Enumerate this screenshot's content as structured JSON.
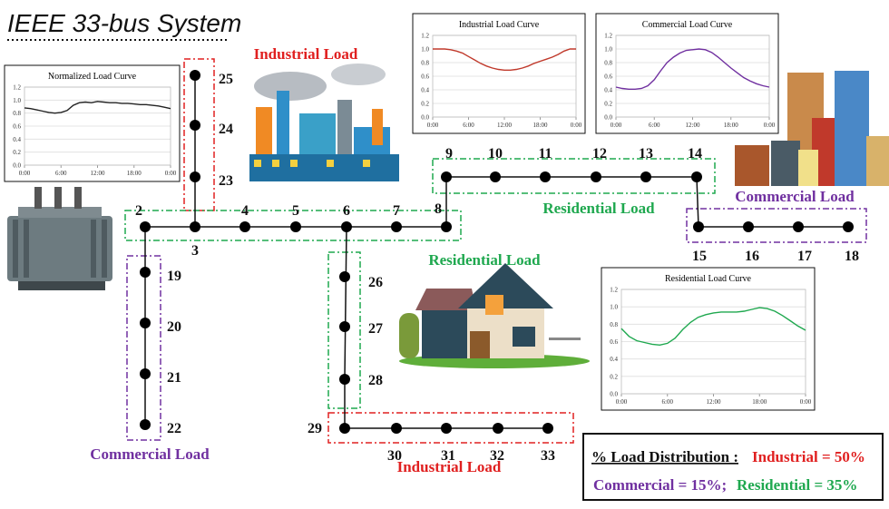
{
  "title": "IEEE 33-bus System",
  "buses": [
    "2",
    "3",
    "4",
    "5",
    "6",
    "7",
    "8",
    "9",
    "10",
    "11",
    "12",
    "13",
    "14",
    "15",
    "16",
    "17",
    "18",
    "19",
    "20",
    "21",
    "22",
    "23",
    "24",
    "25",
    "26",
    "27",
    "28",
    "29",
    "30",
    "31",
    "32",
    "33"
  ],
  "zones": [
    {
      "label": "Industrial Load",
      "color": "#e02020"
    },
    {
      "label": "Commercial Load",
      "color": "#7030a0"
    },
    {
      "label": "Residential Load",
      "color": "#1fa84f"
    },
    {
      "label": "Residential Load",
      "color": "#1fa84f"
    },
    {
      "label": "Commercial Load",
      "color": "#7030a0"
    },
    {
      "label": "Industrial Load",
      "color": "#e02020"
    }
  ],
  "curves": [
    {
      "type": "line",
      "title": "Normalized Load Curve",
      "color": "#222222",
      "x": [
        0,
        1,
        2,
        3,
        4,
        5,
        6,
        7,
        8,
        9,
        10,
        11,
        12,
        13,
        14,
        15,
        16,
        17,
        18,
        19,
        20,
        21,
        22,
        23,
        24
      ],
      "values": [
        0.88,
        0.87,
        0.85,
        0.83,
        0.81,
        0.8,
        0.81,
        0.84,
        0.92,
        0.96,
        0.97,
        0.96,
        0.98,
        0.97,
        0.96,
        0.96,
        0.95,
        0.95,
        0.94,
        0.93,
        0.93,
        0.92,
        0.91,
        0.89,
        0.87
      ],
      "xlim": [
        0,
        24
      ],
      "ylim": [
        0,
        1.2
      ],
      "xticks": [
        {
          "value": 0,
          "label": "0:00"
        },
        {
          "value": 6,
          "label": "6:00"
        },
        {
          "value": 12,
          "label": "12:00"
        },
        {
          "value": 18,
          "label": "18:00"
        },
        {
          "value": 24,
          "label": "0:00"
        }
      ],
      "yticks": [
        {
          "value": 0,
          "label": "0.0"
        },
        {
          "value": 0.2,
          "label": "0.2"
        },
        {
          "value": 0.4,
          "label": "0.4"
        },
        {
          "value": 0.6,
          "label": "0.6"
        },
        {
          "value": 0.8,
          "label": "0.8"
        },
        {
          "value": 1,
          "label": "1.0"
        },
        {
          "value": 1.2,
          "label": "1.2"
        }
      ]
    },
    {
      "type": "line",
      "title": "Industrial Load Curve",
      "color": "#c0392b",
      "x": [
        0,
        1,
        2,
        3,
        4,
        5,
        6,
        7,
        8,
        9,
        10,
        11,
        12,
        13,
        14,
        15,
        16,
        17,
        18,
        19,
        20,
        21,
        22,
        23,
        24
      ],
      "values": [
        1.0,
        1.0,
        1.0,
        0.99,
        0.97,
        0.94,
        0.89,
        0.84,
        0.79,
        0.75,
        0.72,
        0.7,
        0.69,
        0.69,
        0.7,
        0.72,
        0.75,
        0.79,
        0.82,
        0.85,
        0.88,
        0.92,
        0.97,
        1.0,
        1.0
      ],
      "xlim": [
        0,
        24
      ],
      "ylim": [
        0,
        1.2
      ],
      "xticks": [
        {
          "value": 0,
          "label": "0:00"
        },
        {
          "value": 6,
          "label": "6:00"
        },
        {
          "value": 12,
          "label": "12:00"
        },
        {
          "value": 18,
          "label": "18:00"
        },
        {
          "value": 24,
          "label": "0:00"
        }
      ],
      "yticks": [
        {
          "value": 0,
          "label": "0.0"
        },
        {
          "value": 0.2,
          "label": "0.2"
        },
        {
          "value": 0.4,
          "label": "0.4"
        },
        {
          "value": 0.6,
          "label": "0.6"
        },
        {
          "value": 0.8,
          "label": "0.8"
        },
        {
          "value": 1,
          "label": "1.0"
        },
        {
          "value": 1.2,
          "label": "1.2"
        }
      ]
    },
    {
      "type": "line",
      "title": "Commercial Load Curve",
      "color": "#7030a0",
      "x": [
        0,
        1,
        2,
        3,
        4,
        5,
        6,
        7,
        8,
        9,
        10,
        11,
        12,
        13,
        14,
        15,
        16,
        17,
        18,
        19,
        20,
        21,
        22,
        23,
        24
      ],
      "values": [
        0.44,
        0.42,
        0.41,
        0.41,
        0.42,
        0.46,
        0.55,
        0.68,
        0.8,
        0.88,
        0.94,
        0.98,
        0.99,
        1.0,
        0.99,
        0.95,
        0.88,
        0.8,
        0.72,
        0.65,
        0.58,
        0.53,
        0.49,
        0.46,
        0.44
      ],
      "xlim": [
        0,
        24
      ],
      "ylim": [
        0,
        1.2
      ],
      "xticks": [
        {
          "value": 0,
          "label": "0:00"
        },
        {
          "value": 6,
          "label": "6:00"
        },
        {
          "value": 12,
          "label": "12:00"
        },
        {
          "value": 18,
          "label": "18:00"
        },
        {
          "value": 24,
          "label": "0:00"
        }
      ],
      "yticks": [
        {
          "value": 0,
          "label": "0.0"
        },
        {
          "value": 0.2,
          "label": "0.2"
        },
        {
          "value": 0.4,
          "label": "0.4"
        },
        {
          "value": 0.6,
          "label": "0.6"
        },
        {
          "value": 0.8,
          "label": "0.8"
        },
        {
          "value": 1,
          "label": "1.0"
        },
        {
          "value": 1.2,
          "label": "1.2"
        }
      ]
    },
    {
      "type": "line",
      "title": "Residential Load Curve",
      "color": "#1fa84f",
      "x": [
        0,
        1,
        2,
        3,
        4,
        5,
        6,
        7,
        8,
        9,
        10,
        11,
        12,
        13,
        14,
        15,
        16,
        17,
        18,
        19,
        20,
        21,
        22,
        23,
        24
      ],
      "values": [
        0.75,
        0.66,
        0.61,
        0.59,
        0.57,
        0.56,
        0.58,
        0.64,
        0.74,
        0.82,
        0.88,
        0.91,
        0.93,
        0.94,
        0.94,
        0.94,
        0.95,
        0.97,
        0.99,
        0.98,
        0.95,
        0.9,
        0.84,
        0.78,
        0.73
      ],
      "xlim": [
        0,
        24
      ],
      "ylim": [
        0,
        1.2
      ],
      "xticks": [
        {
          "value": 0,
          "label": "0:00"
        },
        {
          "value": 6,
          "label": "6:00"
        },
        {
          "value": 12,
          "label": "12:00"
        },
        {
          "value": 18,
          "label": "18:00"
        },
        {
          "value": 24,
          "label": "0:00"
        }
      ],
      "yticks": [
        {
          "value": 0,
          "label": "0.0"
        },
        {
          "value": 0.2,
          "label": "0.2"
        },
        {
          "value": 0.4,
          "label": "0.4"
        },
        {
          "value": 0.6,
          "label": "0.6"
        },
        {
          "value": 0.8,
          "label": "0.8"
        },
        {
          "value": 1,
          "label": "1.0"
        },
        {
          "value": 1.2,
          "label": "1.2"
        }
      ]
    }
  ],
  "distribution": {
    "heading": "% Load Distribution :",
    "industrial": "Industrial = 50%",
    "commercial": "Commercial = 15%;",
    "residential": "Residential = 35%"
  }
}
